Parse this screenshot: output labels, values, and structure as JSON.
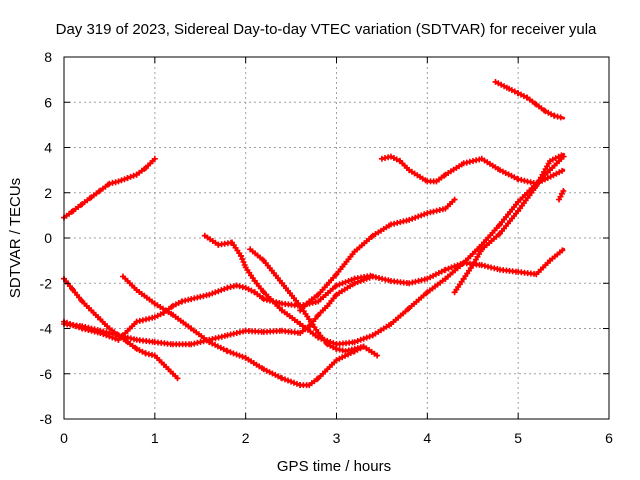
{
  "chart_data": {
    "type": "line",
    "title": "Day 319 of 2023, Sidereal Day-to-day VTEC variation (SDTVAR) for receiver yula",
    "xlabel": "GPS time / hours",
    "ylabel": "SDTVAR / TECUs",
    "xlim": [
      0,
      6
    ],
    "ylim": [
      -8,
      8
    ],
    "xticks": [
      0,
      1,
      2,
      3,
      4,
      5,
      6
    ],
    "yticks": [
      -8,
      -6,
      -4,
      -2,
      0,
      2,
      4,
      6,
      8
    ],
    "grid": true,
    "legend": "none",
    "color": "#ff0000",
    "series": [
      {
        "x": [
          0,
          0.1,
          0.2,
          0.3,
          0.4,
          0.5,
          0.6,
          0.7,
          0.8,
          0.9,
          1.0
        ],
        "y": [
          0.9,
          1.2,
          1.5,
          1.8,
          2.1,
          2.4,
          2.5,
          2.65,
          2.8,
          3.1,
          3.5
        ]
      },
      {
        "x": [
          0,
          0.1,
          0.2,
          0.3,
          0.4,
          0.5,
          0.6,
          0.7,
          0.8,
          0.9,
          1.0,
          1.1,
          1.25
        ],
        "y": [
          -1.8,
          -2.3,
          -2.8,
          -3.2,
          -3.6,
          -4.0,
          -4.3,
          -4.6,
          -4.9,
          -5.1,
          -5.2,
          -5.6,
          -6.2
        ]
      },
      {
        "x": [
          0,
          0.2,
          0.4,
          0.6,
          0.8,
          1.0,
          1.2,
          1.4,
          1.6,
          1.8,
          2.0,
          2.2,
          2.4,
          2.6,
          2.7,
          2.8,
          2.9,
          3.0,
          3.2,
          3.4
        ],
        "y": [
          -3.8,
          -3.9,
          -4.1,
          -4.3,
          -4.5,
          -4.6,
          -4.7,
          -4.7,
          -4.5,
          -4.3,
          -4.1,
          -4.15,
          -4.1,
          -4.2,
          -3.9,
          -3.4,
          -3.0,
          -2.5,
          -2.0,
          -1.7
        ]
      },
      {
        "x": [
          3.4,
          3.6,
          3.8,
          4.0,
          4.2,
          4.4,
          4.6,
          4.8,
          5.0,
          5.2,
          5.35,
          5.5
        ],
        "y": [
          -1.7,
          -1.9,
          -2.0,
          -1.8,
          -1.4,
          -1.1,
          -1.2,
          -1.4,
          -1.5,
          -1.6,
          -1.0,
          -0.5
        ]
      },
      {
        "x": [
          0,
          0.2,
          0.4,
          0.6,
          0.8,
          1.0,
          1.1,
          1.2,
          1.3,
          1.4,
          1.5,
          1.6,
          1.8,
          1.9,
          2.0,
          2.1,
          2.2,
          2.4,
          2.6,
          2.8,
          3.0,
          3.2,
          3.4
        ],
        "y": [
          -3.7,
          -4.0,
          -4.2,
          -4.5,
          -3.7,
          -3.5,
          -3.3,
          -3.0,
          -2.8,
          -2.7,
          -2.6,
          -2.5,
          -2.2,
          -2.1,
          -2.2,
          -2.4,
          -2.7,
          -2.9,
          -3.0,
          -2.8,
          -2.1,
          -1.8,
          -1.65
        ]
      },
      {
        "x": [
          0.65,
          0.8,
          1.0,
          1.2,
          1.4,
          1.6,
          1.8,
          2.0,
          2.2,
          2.4,
          2.6,
          2.7,
          2.8,
          3.0,
          3.2,
          3.3,
          3.45
        ],
        "y": [
          -1.7,
          -2.3,
          -2.9,
          -3.4,
          -4.0,
          -4.6,
          -5.0,
          -5.3,
          -5.8,
          -6.2,
          -6.5,
          -6.5,
          -6.2,
          -5.4,
          -5.0,
          -4.8,
          -5.2
        ]
      },
      {
        "x": [
          1.55,
          1.7,
          1.85,
          1.95,
          2.0,
          2.1,
          2.2,
          2.4,
          2.6,
          2.8,
          3.0,
          3.2,
          3.4,
          3.6,
          3.8,
          4.0,
          4.2,
          4.4,
          4.6,
          4.8,
          5.0,
          5.2,
          5.35,
          5.5
        ],
        "y": [
          0.1,
          -0.3,
          -0.2,
          -0.8,
          -1.3,
          -1.9,
          -2.4,
          -3.2,
          -3.8,
          -4.4,
          -4.7,
          -4.6,
          -4.3,
          -3.8,
          -3.1,
          -2.4,
          -1.8,
          -1.1,
          -0.3,
          0.6,
          1.6,
          2.4,
          3.0,
          3.6
        ]
      },
      {
        "x": [
          2.05,
          2.2,
          2.4,
          2.6,
          2.8,
          2.9,
          3.0,
          3.1,
          3.2,
          3.3
        ],
        "y": [
          -0.5,
          -1.0,
          -2.0,
          -3.0,
          -4.2,
          -4.7,
          -4.9,
          -5.0,
          -4.9,
          -4.8
        ]
      },
      {
        "x": [
          2.6,
          2.7,
          2.8,
          3.0,
          3.2,
          3.4,
          3.6,
          3.8,
          4.0,
          4.2,
          4.3
        ],
        "y": [
          -3.2,
          -2.8,
          -2.5,
          -1.6,
          -0.6,
          0.1,
          0.6,
          0.8,
          1.1,
          1.3,
          1.7
        ]
      },
      {
        "x": [
          3.5,
          3.6,
          3.7,
          3.8,
          4.0,
          4.1,
          4.2,
          4.4,
          4.6,
          4.8,
          5.0,
          5.2,
          5.5
        ],
        "y": [
          3.5,
          3.6,
          3.4,
          3.0,
          2.5,
          2.5,
          2.8,
          3.3,
          3.5,
          3.0,
          2.6,
          2.4,
          3.0
        ]
      },
      {
        "x": [
          4.3,
          4.4,
          4.5,
          4.6,
          4.8,
          5.0,
          5.2,
          5.35,
          5.5
        ],
        "y": [
          -2.4,
          -1.8,
          -1.2,
          -0.5,
          0.2,
          1.2,
          2.3,
          3.4,
          3.7
        ]
      },
      {
        "x": [
          4.75,
          4.9,
          5.0,
          5.1,
          5.2,
          5.3,
          5.4,
          5.5
        ],
        "y": [
          6.9,
          6.6,
          6.4,
          6.2,
          5.9,
          5.6,
          5.4,
          5.3
        ]
      },
      {
        "x": [
          5.45,
          5.5
        ],
        "y": [
          1.7,
          2.1
        ]
      }
    ]
  }
}
